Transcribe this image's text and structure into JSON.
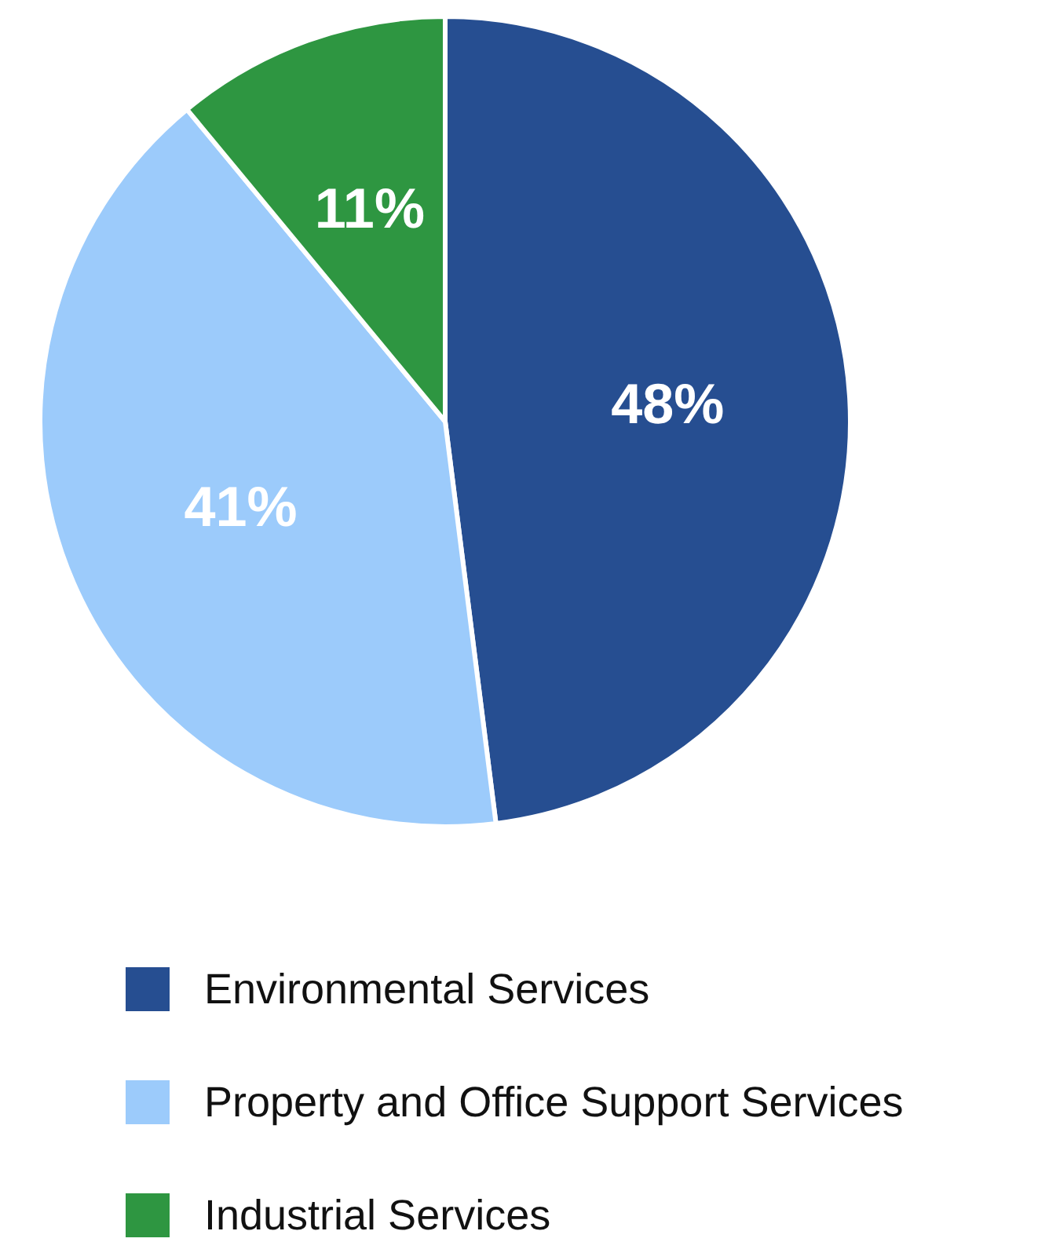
{
  "chart_data": {
    "type": "pie",
    "categories": [
      "Environmental Services",
      "Property and Office Support Services",
      "Industrial Services"
    ],
    "values": [
      48,
      41,
      11
    ],
    "colors": [
      "#264e91",
      "#9ccbfb",
      "#2e9641"
    ],
    "value_labels": [
      "48%",
      "41%",
      "11%"
    ],
    "legend": "bottom"
  }
}
